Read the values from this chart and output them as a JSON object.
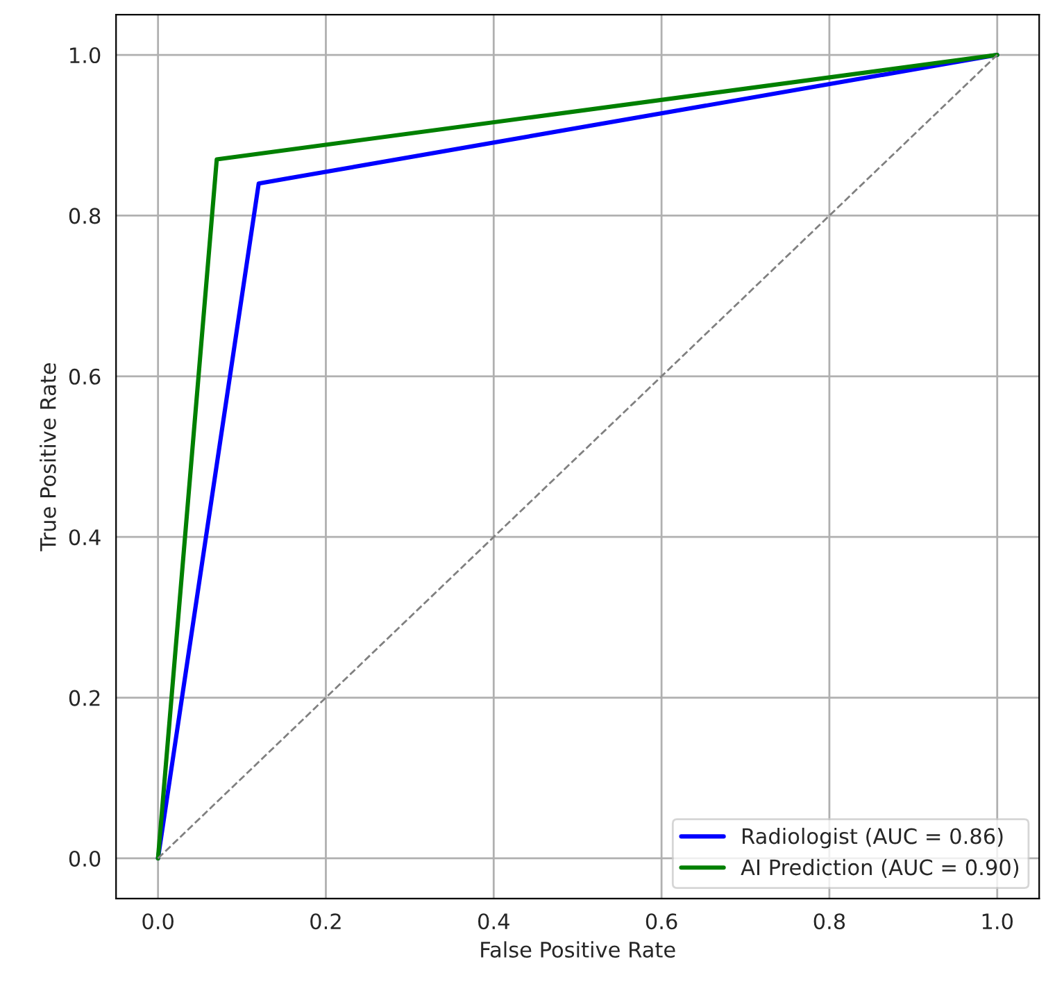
{
  "chart_data": {
    "type": "line",
    "xlabel": "False Positive Rate",
    "ylabel": "True Positive Rate",
    "series": [
      {
        "name": "Radiologist (AUC = 0.86)",
        "color": "#0000ff",
        "x": [
          0,
          0.12,
          1
        ],
        "values": [
          0,
          0.84,
          1
        ]
      },
      {
        "name": "AI Prediction (AUC = 0.90)",
        "color": "#008000",
        "x": [
          0,
          0.07,
          1
        ],
        "values": [
          0,
          0.87,
          1
        ]
      },
      {
        "color": "#808080",
        "x": [
          0,
          1
        ],
        "values": [
          0,
          1
        ],
        "line_style": "dashed"
      }
    ],
    "xlim": [
      -0.05,
      1.05
    ],
    "ylim": [
      -0.05,
      1.05
    ],
    "xticks": [
      {
        "value": 0,
        "label": "0.0"
      },
      0.2,
      0.4,
      0.6,
      0.8,
      {
        "value": 1,
        "label": "1.0"
      }
    ],
    "yticks": [
      {
        "value": 0,
        "label": "0.0"
      },
      0.2,
      0.4,
      0.6,
      0.8,
      {
        "value": 1,
        "label": "1.0"
      }
    ],
    "grid": true,
    "legend": "lower right"
  }
}
